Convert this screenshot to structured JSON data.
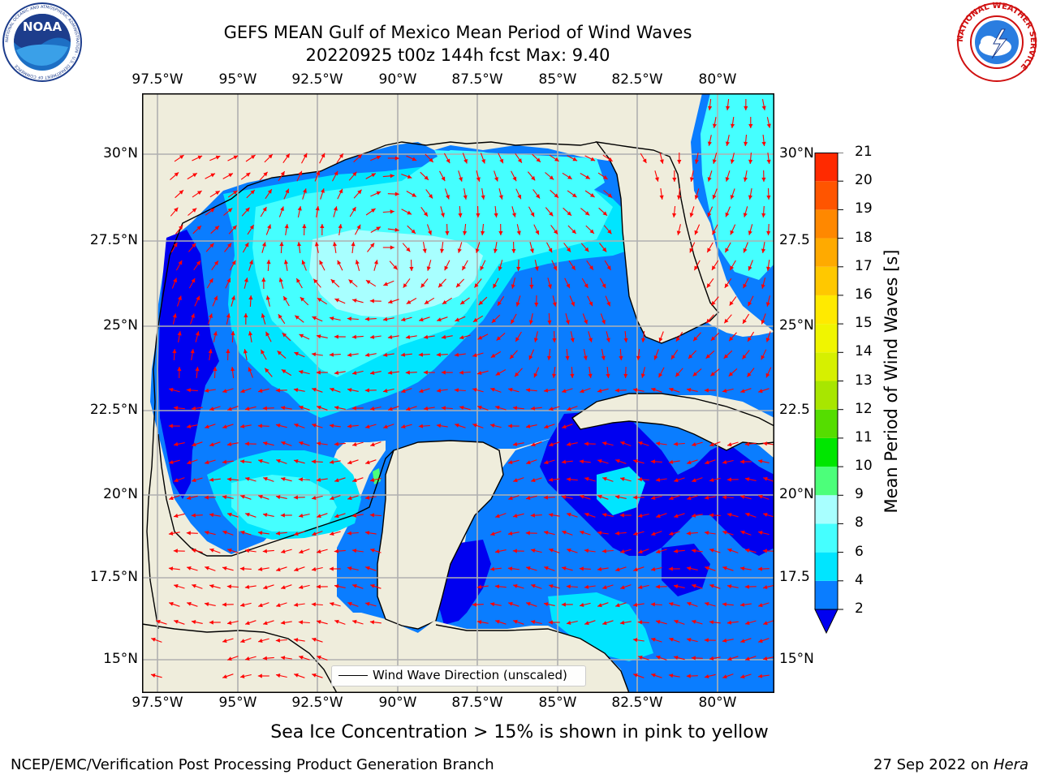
{
  "header": {
    "title_line1": "GEFS MEAN Gulf of Mexico Mean Period of Wind Waves",
    "title_line2": "20220925 t00z 144h fcst   Max: 9.40"
  },
  "logos": {
    "left": "NOAA",
    "left_ring": "NATIONAL OCEANIC AND ATMOSPHERIC ADMINISTRATION · U.S. DEPARTMENT OF COMMERCE",
    "right_ring": "NATIONAL WEATHER SERVICE"
  },
  "map": {
    "lon_ticks": [
      "97.5°W",
      "95°W",
      "92.5°W",
      "90°W",
      "87.5°W",
      "85°W",
      "82.5°W",
      "80°W"
    ],
    "lat_ticks_left": [
      "30°N",
      "27.5°N",
      "25°N",
      "22.5°N",
      "20°N",
      "17.5°N",
      "15°N"
    ],
    "lat_ticks_right": [
      "30°N",
      "27.5",
      "25°N",
      "22.5",
      "20°N",
      "17.5",
      "15°N"
    ],
    "legend_label": "Wind Wave Direction (unscaled)",
    "colors": {
      "land": "#efeddc",
      "ocean_2_4": "#0a7dff",
      "ocean_deep": "#0000f0",
      "ocean_4_6": "#00e5ff",
      "ocean_6_8": "#45ffff",
      "ocean_8_9": "#a8ffff",
      "arrow": "#ff0000"
    }
  },
  "colorbar": {
    "title": "Mean Period of Wind Waves [s]",
    "ticks": [
      "2",
      "4",
      "6",
      "8",
      "9",
      "10",
      "11",
      "12",
      "13",
      "14",
      "15",
      "16",
      "17",
      "18",
      "19",
      "20",
      "21"
    ],
    "colors": [
      "#0a7dff",
      "#00e5ff",
      "#45ffff",
      "#a8ffff",
      "#4cff7a",
      "#00e600",
      "#55dd00",
      "#a8e600",
      "#d6f000",
      "#f0f500",
      "#ffea00",
      "#ffc800",
      "#ffaa00",
      "#ff8800",
      "#ff5500",
      "#ff2a00"
    ],
    "under_color": "#0000f0"
  },
  "note": "Sea Ice Concentration > 15% is shown in pink to yellow",
  "footer": {
    "left": "NCEP/EMC/Verification Post Processing Product Generation Branch",
    "date": "27 Sep 2022 on ",
    "machine": "Hera"
  }
}
